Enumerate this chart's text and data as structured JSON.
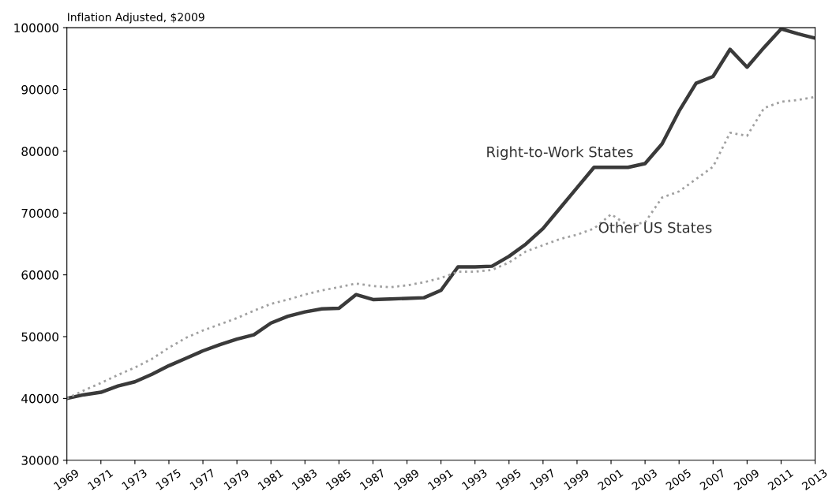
{
  "chart_data": {
    "type": "line",
    "ylabel": "Inflation Adjusted, $2009",
    "x": [
      1969,
      1970,
      1971,
      1972,
      1973,
      1974,
      1975,
      1976,
      1977,
      1978,
      1979,
      1980,
      1981,
      1982,
      1983,
      1984,
      1985,
      1986,
      1987,
      1988,
      1989,
      1990,
      1991,
      1992,
      1993,
      1994,
      1995,
      1996,
      1997,
      1998,
      1999,
      2000,
      2001,
      2002,
      2003,
      2004,
      2005,
      2006,
      2007,
      2008,
      2009,
      2010,
      2011,
      2012,
      2013
    ],
    "series": [
      {
        "name": "Right-to-Work States",
        "color": "#3a3a3a",
        "line_style": "solid",
        "values": [
          40000,
          40600,
          41000,
          42000,
          42700,
          43900,
          45300,
          46500,
          47700,
          48700,
          49600,
          50300,
          52200,
          53300,
          54000,
          54500,
          54600,
          56800,
          56000,
          56100,
          56200,
          56300,
          57500,
          61300,
          61300,
          61400,
          63000,
          65000,
          67500,
          70800,
          74100,
          77400,
          77400,
          77400,
          78000,
          81200,
          86500,
          91000,
          92100,
          96500,
          93600,
          96800,
          99800,
          99000,
          98300
        ]
      },
      {
        "name": "Other US States",
        "color": "#a0a0a0",
        "line_style": "dotted",
        "values": [
          40000,
          41300,
          42500,
          43800,
          45000,
          46400,
          48200,
          49800,
          51000,
          52000,
          53000,
          54200,
          55300,
          56000,
          56800,
          57500,
          58000,
          58600,
          58200,
          58000,
          58300,
          58800,
          59500,
          60500,
          60500,
          60800,
          62000,
          63800,
          64800,
          65800,
          66500,
          67500,
          69800,
          68000,
          68500,
          72500,
          73500,
          75500,
          77500,
          83000,
          82500,
          87000,
          88000,
          88300,
          88800
        ]
      }
    ],
    "xlim": [
      1969,
      2013
    ],
    "ylim": [
      30000,
      100000
    ],
    "xticks": [
      1969,
      1971,
      1973,
      1975,
      1977,
      1979,
      1981,
      1983,
      1985,
      1987,
      1989,
      1991,
      1993,
      1995,
      1997,
      1999,
      2001,
      2003,
      2005,
      2007,
      2009,
      2011,
      2013
    ],
    "yticks": [
      30000,
      40000,
      50000,
      60000,
      70000,
      80000,
      90000,
      100000
    ],
    "grid": false,
    "legend": false
  }
}
